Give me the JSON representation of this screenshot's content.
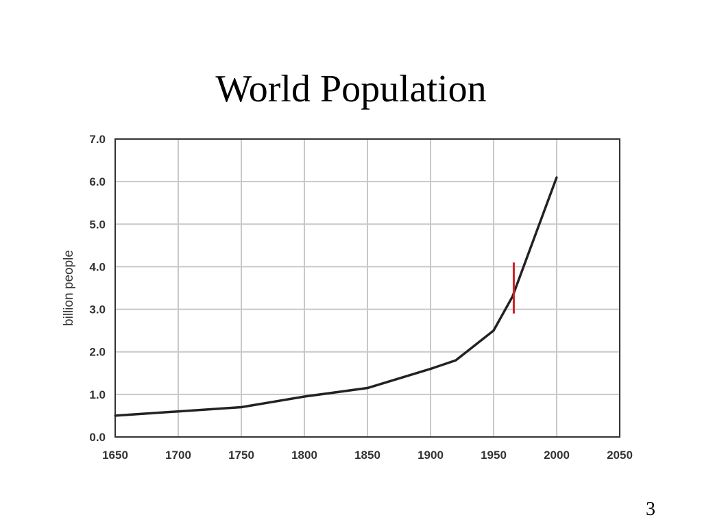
{
  "slide": {
    "title": "World Population",
    "number": "3"
  },
  "colors": {
    "line": "#222222",
    "grid": "#c8c8c8",
    "frame": "#333333",
    "marker": "#d0202a"
  },
  "chart_data": {
    "type": "line",
    "title": "",
    "xlabel": "",
    "ylabel": "billion people",
    "xlim": [
      1650,
      2050
    ],
    "ylim": [
      0.0,
      7.0
    ],
    "x_ticks": [
      "1650",
      "1700",
      "1750",
      "1800",
      "1850",
      "1900",
      "1950",
      "2000",
      "2050"
    ],
    "y_ticks": [
      "0.0",
      "1.0",
      "2.0",
      "3.0",
      "4.0",
      "5.0",
      "6.0",
      "7.0"
    ],
    "grid": true,
    "series": [
      {
        "x": [
          1650,
          1750,
          1800,
          1850,
          1900,
          1920,
          1950,
          1965,
          2000
        ],
        "y": [
          0.5,
          0.7,
          0.95,
          1.15,
          1.6,
          1.8,
          2.5,
          3.3,
          6.1
        ]
      }
    ],
    "annotations": [
      {
        "type": "vertical-marker",
        "x": 1966,
        "y_from": 2.9,
        "y_to": 4.1
      }
    ]
  }
}
